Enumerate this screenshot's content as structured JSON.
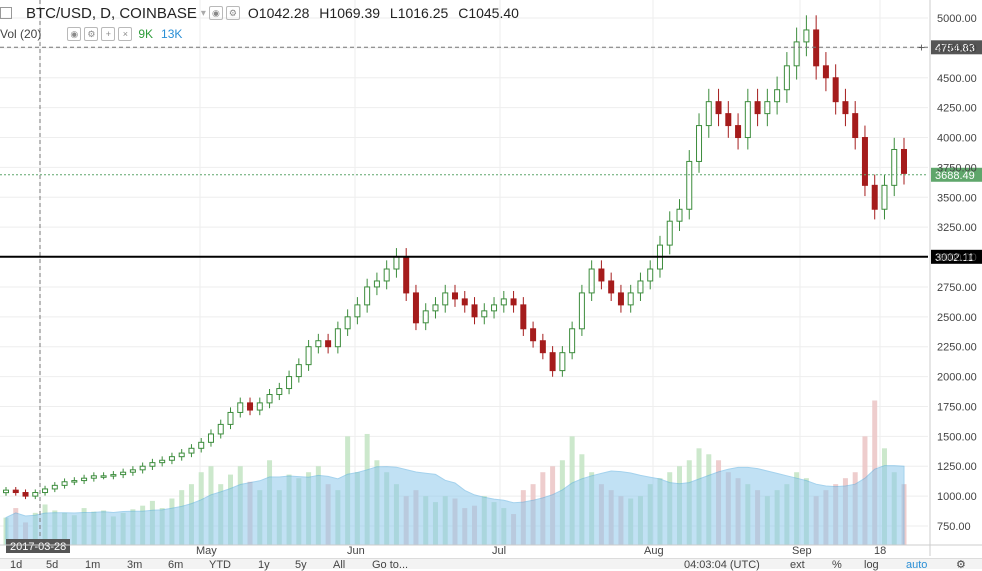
{
  "header": {
    "symbol": "BTC/USD, D, COINBASE",
    "open_label": "O",
    "open": "1042.28",
    "high_label": "H",
    "high": "1069.39",
    "low_label": "L",
    "low": "1016.25",
    "close_label": "C",
    "close": "1045.40"
  },
  "volume_header": {
    "label": "Vol (20)",
    "value_a": "9K",
    "value_b": "13K"
  },
  "price_axis": {
    "ticks": [
      "5000.00",
      "4750.00",
      "4500.00",
      "4250.00",
      "4000.00",
      "3750.00",
      "3500.00",
      "3250.00",
      "3000.00",
      "2750.00",
      "2500.00",
      "2250.00",
      "2000.00",
      "1750.00",
      "1500.00",
      "1250.00",
      "1000.00",
      "750.00"
    ],
    "crosshair_price": "4754.83",
    "last_price": "3688.49",
    "level_price": "3002.11"
  },
  "time_axis": {
    "cursor_date": "2017-03-28",
    "labels": [
      "May",
      "Jun",
      "Jul",
      "Aug",
      "Sep",
      "18"
    ]
  },
  "toolbar": {
    "ranges": [
      "1d",
      "5d",
      "1m",
      "3m",
      "6m",
      "YTD",
      "1y",
      "5y",
      "All"
    ],
    "goto": "Go to...",
    "time": "04:03:04 (UTC)",
    "ext": "ext",
    "percent": "%",
    "log": "log",
    "auto": "auto"
  },
  "colors": {
    "up": "#3c8c3c",
    "down": "#a51c1c",
    "vol_up": "#c6e6c6",
    "vol_down": "#ecc8c8",
    "vol_ma": "#8fc9ec",
    "last_price_badge": "#5fa66b",
    "level_line": "#000000"
  },
  "chart_data": {
    "type": "candlestick",
    "title": "BTC/USD, D, COINBASE",
    "ylim": [
      650,
      5150
    ],
    "horizontal_level": 3002.11,
    "crosshair_price": 4754.83,
    "last_price": 3688.49,
    "series_close": [
      1050,
      1030,
      1000,
      1030,
      1060,
      1090,
      1120,
      1130,
      1150,
      1170,
      1170,
      1180,
      1200,
      1220,
      1250,
      1280,
      1300,
      1330,
      1360,
      1400,
      1450,
      1520,
      1600,
      1700,
      1780,
      1720,
      1780,
      1850,
      1900,
      2000,
      2100,
      2250,
      2300,
      2250,
      2400,
      2500,
      2600,
      2750,
      2800,
      2900,
      3000,
      2700,
      2450,
      2550,
      2600,
      2700,
      2650,
      2600,
      2500,
      2550,
      2600,
      2650,
      2600,
      2400,
      2300,
      2200,
      2050,
      2200,
      2400,
      2700,
      2900,
      2800,
      2700,
      2600,
      2700,
      2800,
      2900,
      3100,
      3300,
      3400,
      3800,
      4100,
      4300,
      4200,
      4100,
      4000,
      4300,
      4200,
      4300,
      4400,
      4600,
      4800,
      4900,
      4600,
      4500,
      4300,
      4200,
      4000,
      3600,
      3400,
      3600,
      3900,
      3700
    ],
    "series_volume": [
      820,
      900,
      780,
      860,
      930,
      880,
      860,
      840,
      900,
      870,
      880,
      830,
      860,
      890,
      920,
      960,
      900,
      980,
      1050,
      1100,
      1200,
      1250,
      1100,
      1180,
      1250,
      1120,
      1050,
      1300,
      1050,
      1180,
      1150,
      1200,
      1250,
      1100,
      1050,
      1500,
      1200,
      1520,
      1300,
      1200,
      1100,
      1000,
      1050,
      1000,
      950,
      1000,
      980,
      900,
      920,
      1000,
      950,
      900,
      850,
      1050,
      1100,
      1200,
      1250,
      1300,
      1500,
      1350,
      1200,
      1100,
      1050,
      1000,
      980,
      1000,
      1100,
      1150,
      1200,
      1250,
      1300,
      1400,
      1350,
      1300,
      1200,
      1150,
      1100,
      1050,
      1000,
      1050,
      1100,
      1200,
      1150,
      1000,
      1050,
      1100,
      1150,
      1200,
      1500,
      1800,
      1400,
      1200,
      1100
    ],
    "volume_ma_range": [
      700,
      1100
    ]
  }
}
